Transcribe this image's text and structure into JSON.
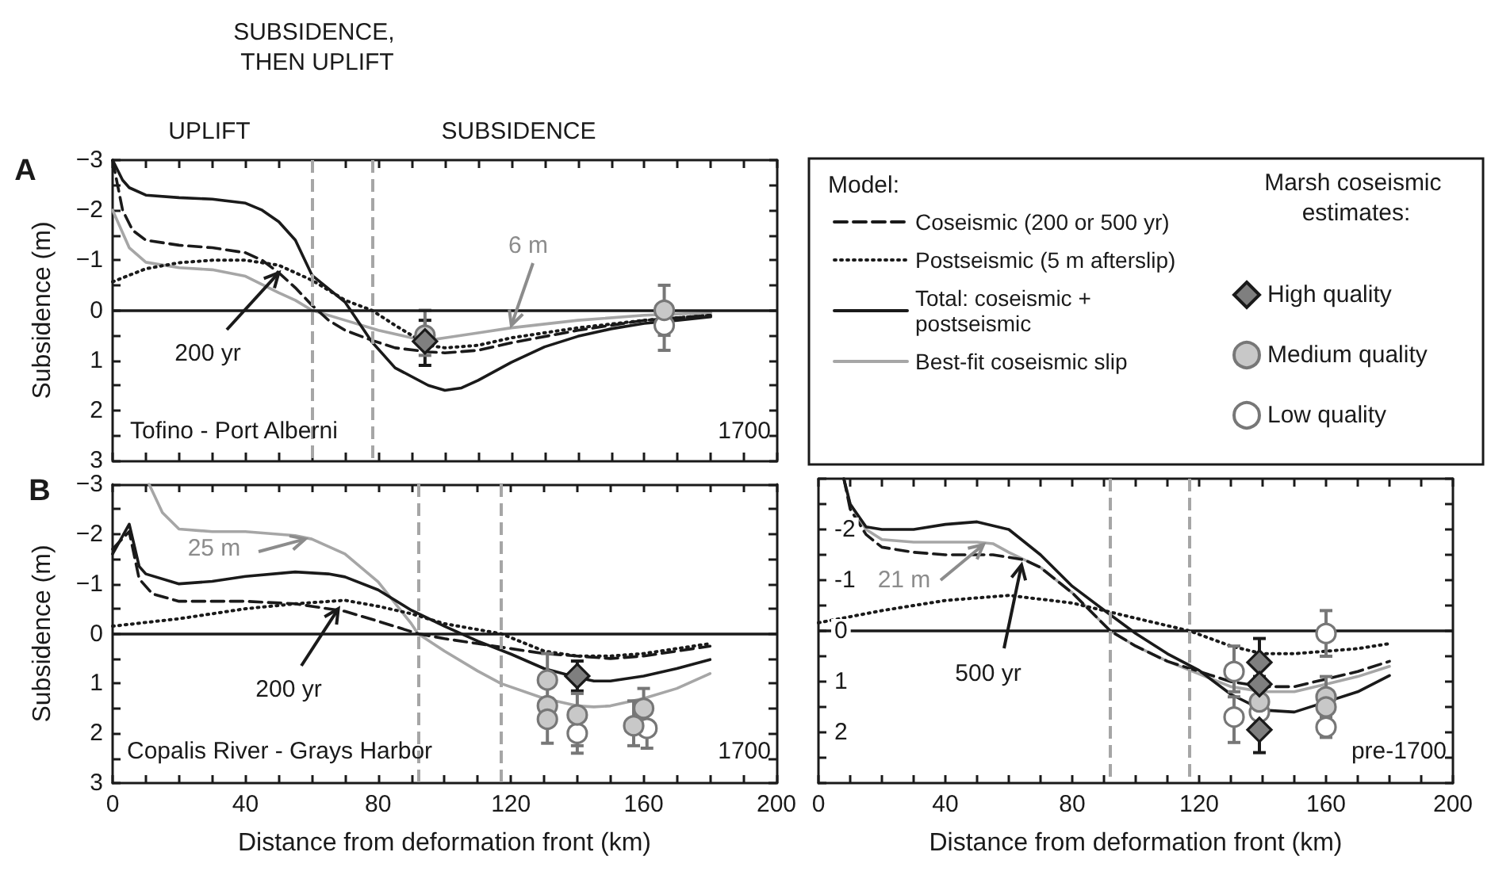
{
  "chart_data": [
    {
      "type": "line",
      "ylabel": "Subsidence (m)",
      "legend_title": "Model:",
      "legend": "right",
      "tick_labels": "y",
      "xlim": [
        0,
        200
      ],
      "xticks": [
        {
          "value": 0,
          "label": null
        },
        {
          "value": 10,
          "label": null
        },
        {
          "value": 20,
          "label": null
        },
        {
          "value": 30,
          "label": null
        },
        {
          "value": 40,
          "label": null
        },
        {
          "value": 50,
          "label": null
        },
        {
          "value": 60,
          "label": null
        },
        {
          "value": 70,
          "label": null
        },
        {
          "value": 80,
          "label": null
        },
        {
          "value": 90,
          "label": null
        },
        {
          "value": 100,
          "label": null
        },
        {
          "value": 110,
          "label": null
        },
        {
          "value": 120,
          "label": null
        },
        {
          "value": 130,
          "label": null
        },
        {
          "value": 140,
          "label": null
        },
        {
          "value": 150,
          "label": null
        },
        {
          "value": 160,
          "label": null
        },
        {
          "value": 170,
          "label": null
        },
        {
          "value": 180,
          "label": null
        },
        {
          "value": 190,
          "label": null
        },
        {
          "value": 200,
          "label": null
        }
      ],
      "ylim": [
        3,
        -3
      ],
      "yticks": [
        {
          "value": -3,
          "label": "−3"
        },
        {
          "value": -2.5,
          "label": null
        },
        {
          "value": -2,
          "label": "−2"
        },
        {
          "value": -1.5,
          "label": null
        },
        {
          "value": -1,
          "label": "−1"
        },
        {
          "value": -0.5,
          "label": null
        },
        0,
        {
          "value": 0.5,
          "label": null
        },
        1,
        {
          "value": 1.5,
          "label": null
        },
        2,
        {
          "value": 2.5,
          "label": null
        },
        3
      ],
      "ref_lines": [
        {
          "axis": "y",
          "value": 0,
          "color": "#1a1a1a",
          "line_style": "solid"
        },
        {
          "axis": "x",
          "value": 60,
          "color": "#a6a6a6",
          "line_style": "dashed"
        },
        {
          "axis": "x",
          "value": 78,
          "color": "#a6a6a6",
          "line_style": "dashed"
        }
      ],
      "annotations": [
        "A",
        "UPLIFT",
        "SUBSIDENCE, THEN UPLIFT",
        "SUBSIDENCE",
        {
          "text": "200 yr",
          "x": 50,
          "y": -0.75
        },
        {
          "text": "6 m",
          "x": 120,
          "y": 0.3
        },
        "Tofino - Port Alberni",
        "1700",
        "Marsh coseismic estimates:"
      ],
      "series": [
        {
          "name": "Coseismic (200 or 500 yr)",
          "type": "line",
          "line_style": "dashed",
          "color": "#1a1a1a",
          "x": [
            0,
            3,
            6,
            10,
            20,
            30,
            40,
            45,
            50,
            55,
            60,
            65,
            70,
            78,
            85,
            95,
            100,
            110,
            120,
            140,
            160,
            180
          ],
          "values": [
            -3.0,
            -2.0,
            -1.6,
            -1.4,
            -1.3,
            -1.25,
            -1.15,
            -1.0,
            -0.75,
            -0.45,
            -0.1,
            0.2,
            0.4,
            0.6,
            0.75,
            0.83,
            0.85,
            0.8,
            0.65,
            0.4,
            0.2,
            0.1
          ]
        },
        {
          "name": "Postseismic (5 m afterslip)",
          "type": "line",
          "line_style": "dotted",
          "color": "#1a1a1a",
          "x": [
            0,
            10,
            20,
            30,
            40,
            50,
            55,
            60,
            70,
            78,
            85,
            90,
            95,
            100,
            110,
            120,
            140,
            160,
            180
          ],
          "values": [
            -0.57,
            -0.83,
            -0.95,
            -1.0,
            -1.0,
            -0.9,
            -0.75,
            -0.6,
            -0.2,
            0.0,
            0.3,
            0.5,
            0.7,
            0.75,
            0.7,
            0.55,
            0.35,
            0.2,
            0.1
          ]
        },
        {
          "name": "Total: coseismic + postseismic",
          "type": "line",
          "line_style": "solid",
          "color": "#1a1a1a",
          "x": [
            0,
            3,
            5,
            10,
            20,
            30,
            40,
            45,
            50,
            55,
            60,
            70,
            78,
            85,
            95,
            100,
            105,
            110,
            120,
            130,
            140,
            150,
            160,
            170,
            180
          ],
          "values": [
            -3.0,
            -2.6,
            -2.45,
            -2.3,
            -2.25,
            -2.22,
            -2.14,
            -2.0,
            -1.77,
            -1.4,
            -0.7,
            -0.16,
            0.63,
            1.15,
            1.5,
            1.6,
            1.55,
            1.4,
            1.04,
            0.73,
            0.52,
            0.37,
            0.26,
            0.2,
            0.13
          ]
        },
        {
          "name": "Best-fit coseismic slip",
          "type": "line",
          "line_style": "solid",
          "color": "#a6a6a6",
          "x": [
            0,
            5,
            10,
            20,
            30,
            40,
            50,
            55,
            60,
            70,
            80,
            90,
            95,
            100,
            110,
            120,
            140,
            160,
            180
          ],
          "values": [
            -2.0,
            -1.25,
            -0.96,
            -0.85,
            -0.81,
            -0.68,
            -0.35,
            -0.2,
            0.0,
            0.2,
            0.4,
            0.55,
            0.6,
            0.55,
            0.45,
            0.35,
            0.2,
            0.1,
            0.05
          ]
        },
        {
          "name": "High quality",
          "type": "scatter",
          "marker": "diamond",
          "color": "#7f7f7f",
          "x": [
            94
          ],
          "values": [
            0.62
          ],
          "errors": [
            [
              0.2,
              1.1
            ]
          ]
        },
        {
          "name": "Medium quality",
          "type": "scatter",
          "marker": "circle",
          "color": "#c8c8c8",
          "x": [
            94,
            166
          ],
          "values": [
            0.5,
            0.0
          ],
          "errors": [
            [
              0.0,
              0.9
            ],
            [
              -0.5,
              0.5
            ]
          ]
        },
        {
          "name": "Low quality",
          "type": "scatter",
          "marker": "circle",
          "color": "#ffffff",
          "x": [
            166
          ],
          "values": [
            0.3
          ],
          "errors": [
            [
              0.3,
              0.8
            ]
          ]
        }
      ]
    },
    {
      "type": "line",
      "ylabel": "Subsidence (m)",
      "xlabel": "Distance from deformation front (km)",
      "xlim": [
        0,
        200
      ],
      "xticks": [
        0,
        {
          "value": 10,
          "label": null
        },
        {
          "value": 20,
          "label": null
        },
        {
          "value": 30,
          "label": null
        },
        40,
        {
          "value": 50,
          "label": null
        },
        {
          "value": 60,
          "label": null
        },
        {
          "value": 70,
          "label": null
        },
        80,
        {
          "value": 90,
          "label": null
        },
        {
          "value": 100,
          "label": null
        },
        {
          "value": 110,
          "label": null
        },
        120,
        {
          "value": 130,
          "label": null
        },
        {
          "value": 140,
          "label": null
        },
        {
          "value": 150,
          "label": null
        },
        160,
        {
          "value": 170,
          "label": null
        },
        {
          "value": 180,
          "label": null
        },
        {
          "value": 190,
          "label": null
        },
        200
      ],
      "ylim": [
        3,
        -3
      ],
      "yticks": [
        {
          "value": -3,
          "label": "−3"
        },
        {
          "value": -2.5,
          "label": null
        },
        {
          "value": -2,
          "label": "−2"
        },
        {
          "value": -1.5,
          "label": null
        },
        {
          "value": -1,
          "label": "−1"
        },
        {
          "value": -0.5,
          "label": null
        },
        0,
        {
          "value": 0.5,
          "label": null
        },
        1,
        {
          "value": 1.5,
          "label": null
        },
        2,
        {
          "value": 2.5,
          "label": null
        },
        3
      ],
      "ref_lines": [
        {
          "axis": "y",
          "value": 0,
          "color": "#1a1a1a",
          "line_style": "solid"
        },
        {
          "axis": "x",
          "value": 92,
          "color": "#a6a6a6",
          "line_style": "dashed"
        },
        {
          "axis": "x",
          "value": 117,
          "color": "#a6a6a6",
          "line_style": "dashed"
        }
      ],
      "annotations": [
        "B",
        {
          "text": "25 m",
          "x": 58,
          "y": -1.9
        },
        {
          "text": "200 yr",
          "x": 68,
          "y": -0.5
        },
        "Copalis River - Grays Harbor",
        "1700"
      ],
      "series": [
        {
          "type": "line",
          "line_style": "dashed",
          "color": "#1a1a1a",
          "x": [
            0,
            5,
            8,
            12,
            20,
            40,
            55,
            60,
            70,
            80,
            92,
            100,
            110,
            120,
            130,
            140,
            150,
            160,
            170,
            180
          ],
          "values": [
            -1.7,
            -2.05,
            -1.1,
            -0.8,
            -0.65,
            -0.65,
            -0.6,
            -0.55,
            -0.45,
            -0.25,
            0.0,
            0.1,
            0.2,
            0.3,
            0.4,
            0.45,
            0.5,
            0.45,
            0.35,
            0.25
          ]
        },
        {
          "type": "line",
          "line_style": "dotted",
          "color": "#1a1a1a",
          "x": [
            0,
            20,
            40,
            55,
            70,
            80,
            90,
            100,
            117,
            130,
            140,
            150,
            160,
            170,
            180
          ],
          "values": [
            -0.15,
            -0.3,
            -0.5,
            -0.6,
            -0.67,
            -0.55,
            -0.4,
            -0.2,
            0.0,
            0.35,
            0.45,
            0.45,
            0.4,
            0.3,
            0.2
          ]
        },
        {
          "type": "line",
          "line_style": "solid",
          "color": "#1a1a1a",
          "x": [
            0,
            5,
            8,
            10,
            20,
            30,
            40,
            55,
            65,
            70,
            80,
            90,
            100,
            110,
            120,
            130,
            140,
            145,
            150,
            160,
            170,
            180
          ],
          "values": [
            -1.6,
            -2.2,
            -1.35,
            -1.2,
            -1.0,
            -1.05,
            -1.15,
            -1.24,
            -1.2,
            -1.14,
            -0.88,
            -0.47,
            -0.15,
            0.15,
            0.41,
            0.7,
            0.88,
            0.95,
            0.95,
            0.85,
            0.7,
            0.52
          ]
        },
        {
          "type": "line",
          "line_style": "solid",
          "color": "#a6a6a6",
          "x": [
            11,
            15,
            20,
            30,
            40,
            55,
            60,
            70,
            80,
            90,
            92,
            100,
            110,
            117,
            130,
            140,
            145,
            150,
            160,
            170,
            180
          ],
          "values": [
            -3.0,
            -2.43,
            -2.1,
            -2.05,
            -2.05,
            -1.97,
            -1.9,
            -1.6,
            -1.04,
            -0.2,
            0.0,
            0.35,
            0.75,
            1.0,
            1.3,
            1.45,
            1.47,
            1.45,
            1.3,
            1.1,
            0.8
          ]
        },
        {
          "type": "scatter",
          "marker": "diamond",
          "color": "#7f7f7f",
          "x": [
            140
          ],
          "values": [
            0.85
          ],
          "errors": [
            [
              0.55,
              1.15
            ]
          ]
        },
        {
          "type": "scatter",
          "marker": "circle",
          "color": "#c8c8c8",
          "x": [
            131,
            131,
            131,
            140,
            157,
            160
          ],
          "values": [
            0.93,
            1.45,
            1.72,
            1.63,
            1.85,
            1.5
          ],
          "errors": [
            [
              0.4,
              1.3
            ],
            null,
            [
              1.3,
              2.2
            ],
            [
              1.2,
              2.25
            ],
            [
              1.35,
              2.25
            ],
            [
              1.1,
              1.9
            ]
          ]
        },
        {
          "type": "scatter",
          "marker": "circle",
          "color": "#ffffff",
          "x": [
            140,
            161
          ],
          "values": [
            2.0,
            1.9
          ],
          "errors": [
            [
              2.0,
              2.4
            ],
            [
              1.5,
              2.3
            ]
          ]
        }
      ]
    },
    {
      "type": "line",
      "xlabel": "Distance from deformation front (km)",
      "xlim": [
        0,
        200
      ],
      "xticks": [
        0,
        {
          "value": 10,
          "label": null
        },
        {
          "value": 20,
          "label": null
        },
        {
          "value": 30,
          "label": null
        },
        40,
        {
          "value": 50,
          "label": null
        },
        {
          "value": 60,
          "label": null
        },
        {
          "value": 70,
          "label": null
        },
        80,
        {
          "value": 90,
          "label": null
        },
        {
          "value": 100,
          "label": null
        },
        {
          "value": 110,
          "label": null
        },
        120,
        {
          "value": 130,
          "label": null
        },
        {
          "value": 140,
          "label": null
        },
        {
          "value": 150,
          "label": null
        },
        160,
        {
          "value": 170,
          "label": null
        },
        {
          "value": 180,
          "label": null
        },
        {
          "value": 190,
          "label": null
        },
        200
      ],
      "ylim": [
        3,
        -3
      ],
      "yticks": [
        {
          "value": -3,
          "label": null
        },
        {
          "value": -2.5,
          "label": null
        },
        -2,
        {
          "value": -1.5,
          "label": null
        },
        -1,
        {
          "value": -0.5,
          "label": null
        },
        0,
        {
          "value": 0.5,
          "label": null
        },
        1,
        {
          "value": 1.5,
          "label": null
        },
        2,
        {
          "value": 2.5,
          "label": null
        },
        {
          "value": 3,
          "label": null
        }
      ],
      "ref_lines": [
        {
          "axis": "y",
          "value": 0,
          "color": "#1a1a1a",
          "line_style": "solid"
        },
        {
          "axis": "x",
          "value": 92,
          "color": "#a6a6a6",
          "line_style": "dashed"
        },
        {
          "axis": "x",
          "value": 117,
          "color": "#a6a6a6",
          "line_style": "dashed"
        }
      ],
      "annotations": [
        {
          "text": "21 m",
          "x": 52,
          "y": -1.7
        },
        {
          "text": "500 yr",
          "x": 64,
          "y": -1.3
        },
        "pre-1700"
      ],
      "series": [
        {
          "type": "line",
          "line_style": "dashed",
          "color": "#1a1a1a",
          "x": [
            8,
            10,
            15,
            20,
            30,
            40,
            55,
            65,
            70,
            80,
            92,
            100,
            110,
            120,
            130,
            140,
            150,
            160,
            170,
            180
          ],
          "values": [
            -3.0,
            -2.4,
            -1.9,
            -1.65,
            -1.55,
            -1.5,
            -1.5,
            -1.4,
            -1.25,
            -0.75,
            0.0,
            0.3,
            0.6,
            0.8,
            1.0,
            1.1,
            1.1,
            0.95,
            0.8,
            0.6
          ]
        },
        {
          "type": "line",
          "line_style": "dotted",
          "color": "#1a1a1a",
          "x": [
            0,
            20,
            40,
            60,
            80,
            100,
            117,
            130,
            140,
            150,
            160,
            170,
            180
          ],
          "values": [
            -0.16,
            -0.4,
            -0.6,
            -0.7,
            -0.55,
            -0.25,
            0.0,
            0.3,
            0.45,
            0.45,
            0.4,
            0.35,
            0.25
          ]
        },
        {
          "type": "line",
          "line_style": "solid",
          "color": "#1a1a1a",
          "x": [
            8,
            10,
            15,
            20,
            30,
            40,
            50,
            60,
            70,
            80,
            90,
            100,
            110,
            120,
            130,
            140,
            150,
            160,
            170,
            180
          ],
          "values": [
            -3.0,
            -2.5,
            -2.05,
            -2.0,
            -2.0,
            -2.1,
            -2.15,
            -2.0,
            -1.5,
            -0.88,
            -0.41,
            0.05,
            0.45,
            0.78,
            1.25,
            1.56,
            1.6,
            1.4,
            1.2,
            0.88
          ]
        },
        {
          "type": "line",
          "line_style": "solid",
          "color": "#a6a6a6",
          "x": [
            8,
            10,
            15,
            20,
            30,
            40,
            50,
            55,
            60,
            70,
            80,
            92,
            100,
            110,
            120,
            130,
            140,
            150,
            160,
            170,
            180
          ],
          "values": [
            -3.0,
            -2.5,
            -2.0,
            -1.8,
            -1.75,
            -1.75,
            -1.75,
            -1.72,
            -1.55,
            -1.25,
            -0.75,
            0.0,
            0.3,
            0.6,
            0.85,
            1.1,
            1.2,
            1.2,
            1.05,
            0.9,
            0.7
          ]
        },
        {
          "type": "scatter",
          "marker": "diamond",
          "color": "#7f7f7f",
          "x": [
            139,
            139,
            139
          ],
          "values": [
            0.62,
            1.05,
            1.95
          ],
          "errors": [
            [
              0.15,
              0.9
            ],
            null,
            [
              1.6,
              2.4
            ]
          ]
        },
        {
          "type": "scatter",
          "marker": "circle",
          "color": "#c8c8c8",
          "x": [
            139,
            160,
            160
          ],
          "values": [
            1.4,
            1.3,
            1.5
          ],
          "errors": [
            null,
            [
              0.9,
              1.7
            ],
            null
          ]
        },
        {
          "type": "scatter",
          "marker": "circle",
          "color": "#ffffff",
          "x": [
            131,
            131,
            139,
            160,
            160
          ],
          "values": [
            0.8,
            1.7,
            1.6,
            0.05,
            1.9
          ],
          "errors": [
            [
              0.3,
              1.2
            ],
            [
              1.3,
              2.2
            ],
            null,
            [
              -0.4,
              0.5
            ],
            [
              1.6,
              2.1
            ]
          ]
        }
      ]
    }
  ]
}
